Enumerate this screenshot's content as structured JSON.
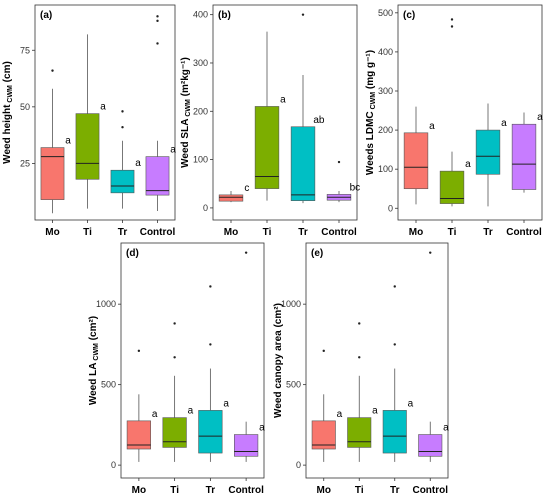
{
  "chart_data": [
    {
      "type": "box",
      "panel_label": "(a)",
      "ylabel": "Weed height",
      "ylabel_sub": "CWM",
      "ylabel_unit": " (cm)",
      "yticks": [
        25,
        50,
        75
      ],
      "ylim": [
        0,
        95
      ],
      "categories": [
        "Mo",
        "Ti",
        "Tr",
        "Control"
      ],
      "colors": [
        "#f8766d",
        "#7cae00",
        "#00bfc4",
        "#c77cff"
      ],
      "boxes": [
        {
          "min": 3,
          "q1": 9,
          "median": 28,
          "q3": 32,
          "max": 58,
          "outliers": [
            66
          ],
          "letter": "a"
        },
        {
          "min": 5,
          "q1": 18,
          "median": 25,
          "q3": 47,
          "max": 82,
          "outliers": [],
          "letter": "a"
        },
        {
          "min": 5,
          "q1": 12,
          "median": 15,
          "q3": 22,
          "max": 35,
          "outliers": [
            41,
            48
          ],
          "letter": "a"
        },
        {
          "min": 4,
          "q1": 11,
          "median": 13,
          "q3": 28,
          "max": 35,
          "outliers": [
            78,
            88,
            90
          ],
          "letter": "a"
        }
      ]
    },
    {
      "type": "box",
      "panel_label": "(b)",
      "ylabel": "Weed SLA",
      "ylabel_sub": "CWM",
      "ylabel_unit": " (m²kg⁻¹)",
      "yticks": [
        0,
        100,
        200,
        300,
        400
      ],
      "ylim": [
        -25,
        420
      ],
      "categories": [
        "Mo",
        "Ti",
        "Tr",
        "Control"
      ],
      "colors": [
        "#f8766d",
        "#7cae00",
        "#00bfc4",
        "#c77cff"
      ],
      "boxes": [
        {
          "min": 12,
          "q1": 14,
          "median": 22,
          "q3": 27,
          "max": 35,
          "outliers": [],
          "letter": "c"
        },
        {
          "min": 15,
          "q1": 40,
          "median": 65,
          "q3": 210,
          "max": 365,
          "outliers": [],
          "letter": "a"
        },
        {
          "min": 10,
          "q1": 15,
          "median": 27,
          "q3": 168,
          "max": 275,
          "outliers": [
            400
          ],
          "letter": "ab"
        },
        {
          "min": 12,
          "q1": 16,
          "median": 22,
          "q3": 28,
          "max": 35,
          "outliers": [
            95
          ],
          "letter": "bc"
        }
      ]
    },
    {
      "type": "box",
      "panel_label": "(c)",
      "ylabel": "Weeds LDMC",
      "ylabel_sub": "CWM",
      "ylabel_unit": " (mg g⁻¹)",
      "yticks": [
        0,
        100,
        200,
        300,
        400,
        500
      ],
      "ylim": [
        -30,
        520
      ],
      "categories": [
        "Mo",
        "Ti",
        "Tr",
        "Control"
      ],
      "colors": [
        "#f8766d",
        "#7cae00",
        "#00bfc4",
        "#c77cff"
      ],
      "boxes": [
        {
          "min": 10,
          "q1": 50,
          "median": 105,
          "q3": 193,
          "max": 260,
          "outliers": [],
          "letter": "a"
        },
        {
          "min": 5,
          "q1": 12,
          "median": 25,
          "q3": 95,
          "max": 145,
          "outliers": [
            465,
            483
          ],
          "letter": "a"
        },
        {
          "min": 5,
          "q1": 87,
          "median": 133,
          "q3": 200,
          "max": 268,
          "outliers": [],
          "letter": "a"
        },
        {
          "min": 40,
          "q1": 48,
          "median": 113,
          "q3": 215,
          "max": 245,
          "outliers": [],
          "letter": "a"
        }
      ]
    },
    {
      "type": "box",
      "panel_label": "(d)",
      "ylabel": "Weed LA",
      "ylabel_sub": "CWM",
      "ylabel_unit": " (cm²)",
      "yticks": [
        0,
        500,
        1000
      ],
      "ylim": [
        -80,
        1380
      ],
      "categories": [
        "Mo",
        "Ti",
        "Tr",
        "Control"
      ],
      "colors": [
        "#f8766d",
        "#7cae00",
        "#00bfc4",
        "#c77cff"
      ],
      "boxes": [
        {
          "min": 20,
          "q1": 100,
          "median": 125,
          "q3": 275,
          "max": 440,
          "outliers": [
            710
          ],
          "letter": "a"
        },
        {
          "min": 20,
          "q1": 110,
          "median": 145,
          "q3": 295,
          "max": 555,
          "outliers": [
            670,
            880
          ],
          "letter": "a"
        },
        {
          "min": 20,
          "q1": 75,
          "median": 180,
          "q3": 340,
          "max": 600,
          "outliers": [
            750,
            1110
          ],
          "letter": "a"
        },
        {
          "min": 20,
          "q1": 55,
          "median": 85,
          "q3": 190,
          "max": 270,
          "outliers": [
            1320
          ],
          "letter": "a"
        }
      ]
    },
    {
      "type": "box",
      "panel_label": "(e)",
      "ylabel": "Weed canopy area",
      "ylabel_sub": "",
      "ylabel_unit": " (cm²)",
      "yticks": [
        0,
        500,
        1000
      ],
      "ylim": [
        -80,
        1380
      ],
      "categories": [
        "Mo",
        "Ti",
        "Tr",
        "Control"
      ],
      "colors": [
        "#f8766d",
        "#7cae00",
        "#00bfc4",
        "#c77cff"
      ],
      "boxes": [
        {
          "min": 20,
          "q1": 100,
          "median": 125,
          "q3": 275,
          "max": 440,
          "outliers": [
            710
          ],
          "letter": "a"
        },
        {
          "min": 20,
          "q1": 110,
          "median": 145,
          "q3": 295,
          "max": 555,
          "outliers": [
            670,
            880
          ],
          "letter": "a"
        },
        {
          "min": 20,
          "q1": 75,
          "median": 180,
          "q3": 340,
          "max": 600,
          "outliers": [
            750,
            1110
          ],
          "letter": "a"
        },
        {
          "min": 20,
          "q1": 55,
          "median": 85,
          "q3": 190,
          "max": 270,
          "outliers": [
            1320
          ],
          "letter": "a"
        }
      ]
    }
  ]
}
